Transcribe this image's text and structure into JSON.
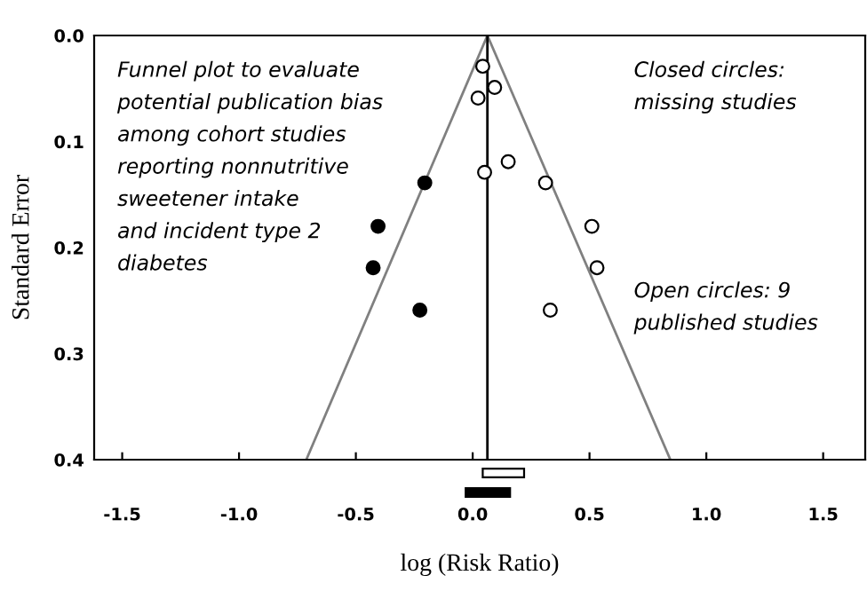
{
  "chart_data": [
    {
      "type": "scatter",
      "ylabel": "Standard Error",
      "xlim": [
        -1.62,
        1.68
      ],
      "ylim": [
        0.4,
        0.0
      ],
      "xticks": [
        {
          "value": -1.5,
          "label": null
        },
        {
          "value": -1.0,
          "label": null
        },
        {
          "value": -0.5,
          "label": null
        },
        {
          "value": 0.0,
          "label": null
        },
        {
          "value": 0.5,
          "label": null
        },
        {
          "value": 1.0,
          "label": null
        },
        {
          "value": 1.5,
          "label": null
        }
      ],
      "yticks": [
        {
          "value": 0.0,
          "label": "0.0"
        },
        0.1,
        0.2,
        0.3,
        0.4
      ],
      "tick_labels": "y",
      "grid": false,
      "series": [
        {
          "type": "line",
          "marker": "none",
          "color": "#808080",
          "x": [
            -0.712,
            0.063,
            0.846
          ],
          "values": [
            0.4,
            0.0,
            0.4
          ]
        },
        {
          "marker": "circle",
          "color": "#ffffff",
          "x": [
            0.043,
            0.094,
            0.023,
            0.152,
            0.051,
            0.312,
            0.51,
            0.532,
            0.332
          ],
          "values": [
            0.029,
            0.049,
            0.059,
            0.119,
            0.129,
            0.139,
            0.18,
            0.219,
            0.259
          ]
        },
        {
          "marker": "circle",
          "color": "#000000",
          "x": [
            -0.205,
            -0.405,
            -0.426,
            -0.226
          ],
          "values": [
            0.139,
            0.18,
            0.219,
            0.259
          ]
        }
      ],
      "ref_lines": [
        {
          "axis": "x",
          "value": 0.063,
          "color": "#000000"
        }
      ],
      "annotations": [
        "Funnel plot to evaluate\npotential publication bias\namong cohort studies\nreporting nonnutritive\nsweetener intake\nand incident type 2\ndiabetes",
        "Closed circles:\nmissing studies",
        "Open circles: 9\npublished studies"
      ]
    },
    {
      "type": "bar",
      "orientation": "horizontal",
      "categories": [
        null,
        null
      ],
      "base": [
        0.043,
        -0.03
      ],
      "values": [
        0.177,
        0.19
      ],
      "colors": [
        "#ffffff",
        "#000000"
      ],
      "xlim": [
        -1.62,
        1.68
      ],
      "xticks": [
        -1.5,
        {
          "value": -1.0,
          "label": "-1.0"
        },
        -0.5,
        {
          "value": 0.0,
          "label": "0.0"
        },
        0.5,
        {
          "value": 1.0,
          "label": "1.0"
        },
        1.5
      ],
      "xlabel": "log (Risk Ratio)",
      "tick_labels": "x"
    }
  ]
}
